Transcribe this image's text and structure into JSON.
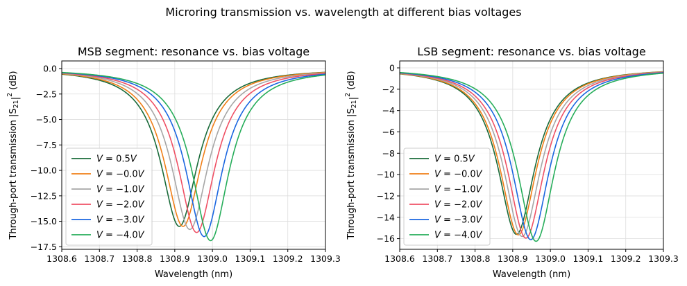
{
  "suptitle": "Microring transmission vs. wavelength at different bias voltages",
  "chart_data": [
    {
      "type": "line",
      "title": "MSB segment: resonance vs. bias voltage",
      "xlabel": "Wavelength (nm)",
      "ylabel_main": "Through-port transmission |S",
      "ylabel_sub": "21",
      "ylabel_sup": "2",
      "ylabel_tail": " (dB)",
      "xlim": [
        1308.6,
        1309.3
      ],
      "ylim": [
        -17.75,
        0.75
      ],
      "xticks": [
        1308.6,
        1308.7,
        1308.8,
        1308.9,
        1309.0,
        1309.1,
        1309.2,
        1309.3
      ],
      "xtick_labels": [
        "1308.6",
        "1308.7",
        "1308.8",
        "1308.9",
        "1309.0",
        "1309.1",
        "1309.2",
        "1309.3"
      ],
      "yticks": [
        0,
        -2.5,
        -5,
        -7.5,
        -10,
        -12.5,
        -15,
        -17.5
      ],
      "ytick_labels": [
        "0.0",
        "−2.5",
        "−5.0",
        "−7.5",
        "−10.0",
        "−12.5",
        "−15.0",
        "−17.5"
      ],
      "legend_position": "lower-left",
      "series": [
        {
          "name": "V = 0.5V",
          "label_main": "V",
          "label_val": " = 0.5",
          "label_unit": "V",
          "color": "#1a6b3a",
          "center": 1308.912,
          "depth": 15.5,
          "hwhm": 0.06
        },
        {
          "name": "V = −0.0V",
          "label_main": "V",
          "label_val": " = −0.0",
          "label_unit": "V",
          "color": "#f07f17",
          "center": 1308.922,
          "depth": 15.5,
          "hwhm": 0.06
        },
        {
          "name": "V = −1.0V",
          "label_main": "V",
          "label_val": " = −1.0",
          "label_unit": "V",
          "color": "#a6a6a6",
          "center": 1308.94,
          "depth": 15.8,
          "hwhm": 0.06
        },
        {
          "name": "V = −2.0V",
          "label_main": "V",
          "label_val": " = −2.0",
          "label_unit": "V",
          "color": "#ef5064",
          "center": 1308.958,
          "depth": 16.1,
          "hwhm": 0.06
        },
        {
          "name": "V = −3.0V",
          "label_main": "V",
          "label_val": " = −3.0",
          "label_unit": "V",
          "color": "#1a66e0",
          "center": 1308.978,
          "depth": 16.5,
          "hwhm": 0.06
        },
        {
          "name": "V = −4.0V",
          "label_main": "V",
          "label_val": " = −4.0",
          "label_unit": "V",
          "color": "#26ad5a",
          "center": 1308.995,
          "depth": 16.9,
          "hwhm": 0.06
        }
      ]
    },
    {
      "type": "line",
      "title": "LSB segment: resonance vs. bias voltage",
      "xlabel": "Wavelength (nm)",
      "ylabel_main": "Through-port transmission |S",
      "ylabel_sub": "21",
      "ylabel_sup": "2",
      "ylabel_tail": " (dB)",
      "xlim": [
        1308.6,
        1309.3
      ],
      "ylim": [
        -17.0,
        0.65
      ],
      "xticks": [
        1308.6,
        1308.7,
        1308.8,
        1308.9,
        1309.0,
        1309.1,
        1309.2,
        1309.3
      ],
      "xtick_labels": [
        "1308.6",
        "1308.7",
        "1308.8",
        "1308.9",
        "1309.0",
        "1309.1",
        "1309.2",
        "1309.3"
      ],
      "yticks": [
        0,
        -2,
        -4,
        -6,
        -8,
        -10,
        -12,
        -14,
        -16
      ],
      "ytick_labels": [
        "0",
        "−2",
        "−4",
        "−6",
        "−8",
        "−10",
        "−12",
        "−14",
        "−16"
      ],
      "legend_position": "lower-left",
      "series": [
        {
          "name": "V = 0.5V",
          "label_main": "V",
          "label_val": " = 0.5",
          "label_unit": "V",
          "color": "#1a6b3a",
          "center": 1308.91,
          "depth": 15.6,
          "hwhm": 0.06
        },
        {
          "name": "V = −0.0V",
          "label_main": "V",
          "label_val": " = −0.0",
          "label_unit": "V",
          "color": "#f07f17",
          "center": 1308.915,
          "depth": 15.65,
          "hwhm": 0.06
        },
        {
          "name": "V = −1.0V",
          "label_main": "V",
          "label_val": " = −1.0",
          "label_unit": "V",
          "color": "#a6a6a6",
          "center": 1308.925,
          "depth": 15.8,
          "hwhm": 0.06
        },
        {
          "name": "V = −2.0V",
          "label_main": "V",
          "label_val": " = −2.0",
          "label_unit": "V",
          "color": "#ef5064",
          "center": 1308.935,
          "depth": 15.95,
          "hwhm": 0.06
        },
        {
          "name": "V = −3.0V",
          "label_main": "V",
          "label_val": " = −3.0",
          "label_unit": "V",
          "color": "#1a66e0",
          "center": 1308.948,
          "depth": 16.1,
          "hwhm": 0.06
        },
        {
          "name": "V = −4.0V",
          "label_main": "V",
          "label_val": " = −4.0",
          "label_unit": "V",
          "color": "#26ad5a",
          "center": 1308.962,
          "depth": 16.25,
          "hwhm": 0.06
        }
      ]
    }
  ]
}
